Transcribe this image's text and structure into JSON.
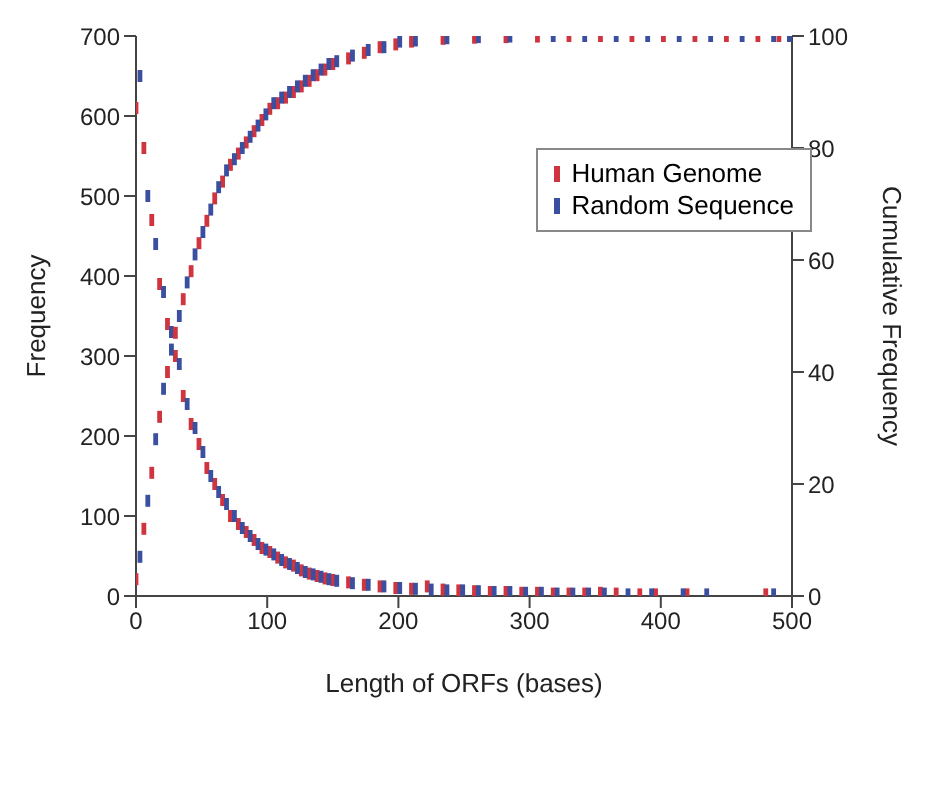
{
  "chart_data": {
    "type": "scatter",
    "xlabel": "Length of ORFs (bases)",
    "ylabel": "Frequency",
    "y2label": "Cumulative Frequency",
    "xlim": [
      0,
      500
    ],
    "xticks": [
      0,
      100,
      200,
      300,
      400,
      500
    ],
    "ylim": [
      0,
      700
    ],
    "yticks": [
      0,
      100,
      200,
      300,
      400,
      500,
      600,
      700
    ],
    "y2lim": [
      0,
      100
    ],
    "y2ticks": [
      0,
      20,
      40,
      60,
      80,
      100
    ],
    "marker": "square",
    "legend": "top right",
    "grid": false,
    "series": [
      {
        "name": "Human Genome",
        "color": "#d0343f",
        "x": [
          0,
          6,
          12,
          18,
          24,
          30,
          36,
          42,
          48,
          54,
          60,
          66,
          72,
          78,
          84,
          90,
          96,
          102,
          108,
          114,
          120,
          126,
          132,
          138,
          144,
          150,
          162,
          174,
          186,
          198,
          210,
          222,
          234,
          246,
          258,
          270,
          282,
          294,
          306,
          318,
          330,
          342,
          354,
          366,
          384,
          396,
          420,
          480
        ],
        "values": [
          610,
          560,
          470,
          390,
          340,
          300,
          250,
          215,
          190,
          160,
          140,
          120,
          100,
          90,
          80,
          70,
          60,
          55,
          48,
          42,
          38,
          32,
          28,
          25,
          22,
          20,
          17,
          14,
          12,
          10,
          9,
          12,
          8,
          7,
          6,
          5,
          5,
          4,
          4,
          3,
          3,
          3,
          4,
          3,
          2,
          2,
          2,
          2
        ]
      },
      {
        "name": "Random Sequence",
        "color": "#3a4fa0",
        "x": [
          3,
          9,
          15,
          21,
          27,
          33,
          39,
          45,
          51,
          57,
          63,
          69,
          75,
          81,
          87,
          93,
          99,
          105,
          111,
          117,
          123,
          129,
          135,
          141,
          147,
          153,
          165,
          177,
          189,
          201,
          213,
          225,
          237,
          249,
          261,
          273,
          285,
          297,
          309,
          321,
          333,
          345,
          357,
          375,
          393,
          417,
          435,
          486
        ],
        "values": [
          650,
          500,
          440,
          380,
          330,
          290,
          240,
          210,
          180,
          150,
          130,
          115,
          100,
          85,
          75,
          65,
          58,
          52,
          45,
          40,
          35,
          30,
          27,
          24,
          21,
          19,
          16,
          14,
          12,
          10,
          9,
          8,
          7,
          7,
          6,
          5,
          5,
          4,
          4,
          3,
          3,
          3,
          3,
          2,
          2,
          2,
          2,
          2
        ]
      },
      {
        "color": "#d0343f",
        "axis": "y2",
        "x": [
          0,
          6,
          12,
          18,
          24,
          30,
          36,
          42,
          48,
          54,
          60,
          66,
          72,
          78,
          84,
          90,
          96,
          102,
          108,
          114,
          120,
          126,
          132,
          138,
          144,
          150,
          162,
          174,
          186,
          198,
          210,
          234,
          258,
          282,
          306,
          330,
          354,
          378,
          402,
          426,
          450,
          474,
          490
        ],
        "values": [
          3,
          12,
          22,
          32,
          40,
          47,
          53,
          58,
          63,
          67,
          71,
          74,
          77,
          79,
          81,
          83,
          85,
          87,
          88,
          89,
          90,
          91,
          92,
          93,
          94,
          95,
          96,
          97,
          98,
          98.5,
          99,
          99.5,
          99.7,
          99.8,
          99.9,
          100,
          100,
          100,
          100,
          100,
          100,
          100,
          100
        ]
      },
      {
        "color": "#3a4fa0",
        "axis": "y2",
        "x": [
          3,
          9,
          15,
          21,
          27,
          33,
          39,
          45,
          51,
          57,
          63,
          69,
          75,
          81,
          87,
          93,
          99,
          105,
          111,
          117,
          123,
          129,
          135,
          141,
          147,
          153,
          165,
          177,
          189,
          201,
          213,
          237,
          261,
          285,
          318,
          342,
          366,
          390,
          414,
          438,
          462,
          486,
          498
        ],
        "values": [
          7,
          17,
          28,
          37,
          44,
          50,
          56,
          61,
          65,
          69,
          73,
          76,
          78,
          80,
          82,
          84,
          86,
          88,
          89,
          90,
          91,
          92,
          93,
          94,
          95,
          95.5,
          96.5,
          97.5,
          98,
          99,
          99.2,
          99.6,
          99.8,
          99.9,
          100,
          100,
          100,
          100,
          100,
          100,
          100,
          100,
          100
        ]
      }
    ]
  }
}
